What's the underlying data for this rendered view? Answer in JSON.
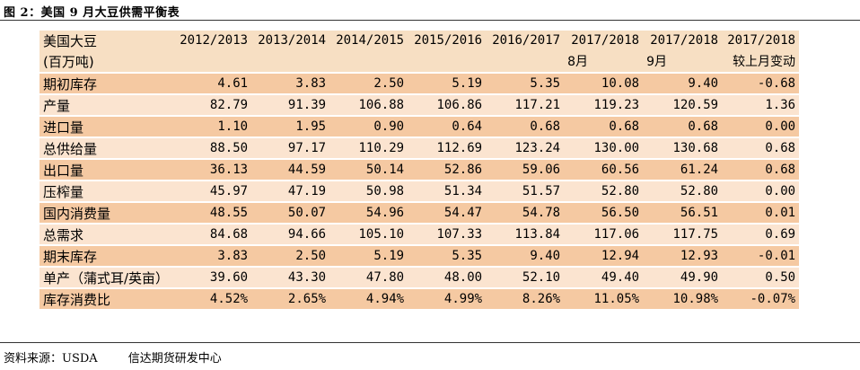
{
  "figure_title": "图 2：美国 9 月大豆供需平衡表",
  "header": {
    "corner_line1": "美国大豆",
    "corner_line2": "(百万吨)",
    "columns": [
      {
        "line1": "2012/2013",
        "line2": ""
      },
      {
        "line1": "2013/2014",
        "line2": ""
      },
      {
        "line1": "2014/2015",
        "line2": ""
      },
      {
        "line1": "2015/2016",
        "line2": ""
      },
      {
        "line1": "2016/2017",
        "line2": ""
      },
      {
        "line1": "2017/2018",
        "line2": "8月"
      },
      {
        "line1": "2017/2018",
        "line2": "9月"
      },
      {
        "line1": "2017/2018",
        "line2": "较上月变动"
      }
    ]
  },
  "rows": [
    {
      "label": "期初库存",
      "values": [
        "4.61",
        "3.83",
        "2.50",
        "5.19",
        "5.35",
        "10.08",
        "9.40",
        "-0.68"
      ]
    },
    {
      "label": "产量",
      "values": [
        "82.79",
        "91.39",
        "106.88",
        "106.86",
        "117.21",
        "119.23",
        "120.59",
        "1.36"
      ]
    },
    {
      "label": "进口量",
      "values": [
        "1.10",
        "1.95",
        "0.90",
        "0.64",
        "0.68",
        "0.68",
        "0.68",
        "0.00"
      ]
    },
    {
      "label": "总供给量",
      "values": [
        "88.50",
        "97.17",
        "110.29",
        "112.69",
        "123.24",
        "130.00",
        "130.68",
        "0.68"
      ]
    },
    {
      "label": "出口量",
      "values": [
        "36.13",
        "44.59",
        "50.14",
        "52.86",
        "59.06",
        "60.56",
        "61.24",
        "0.68"
      ]
    },
    {
      "label": "压榨量",
      "values": [
        "45.97",
        "47.19",
        "50.98",
        "51.34",
        "51.57",
        "52.80",
        "52.80",
        "0.00"
      ]
    },
    {
      "label": "国内消费量",
      "values": [
        "48.55",
        "50.07",
        "54.96",
        "54.47",
        "54.78",
        "56.50",
        "56.51",
        "0.01"
      ]
    },
    {
      "label": "总需求",
      "values": [
        "84.68",
        "94.66",
        "105.10",
        "107.33",
        "113.84",
        "117.06",
        "117.75",
        "0.69"
      ]
    },
    {
      "label": "期末库存",
      "values": [
        "3.83",
        "2.50",
        "5.19",
        "5.35",
        "9.40",
        "12.94",
        "12.93",
        "-0.01"
      ]
    },
    {
      "label": "单产（蒲式耳/英亩）",
      "values": [
        "39.60",
        "43.30",
        "47.80",
        "48.00",
        "52.10",
        "49.40",
        "49.90",
        "0.50"
      ]
    },
    {
      "label": "库存消费比",
      "values": [
        "4.52%",
        "2.65%",
        "4.94%",
        "4.99%",
        "8.26%",
        "11.05%",
        "10.98%",
        "-0.07%"
      ]
    }
  ],
  "source": {
    "prefix": "资料来源：USDA",
    "org": "信达期货研发中心"
  },
  "colors": {
    "band_dark": "#f5c9a2",
    "band_light": "#fbe4d0",
    "header": "#f7dfc3"
  }
}
